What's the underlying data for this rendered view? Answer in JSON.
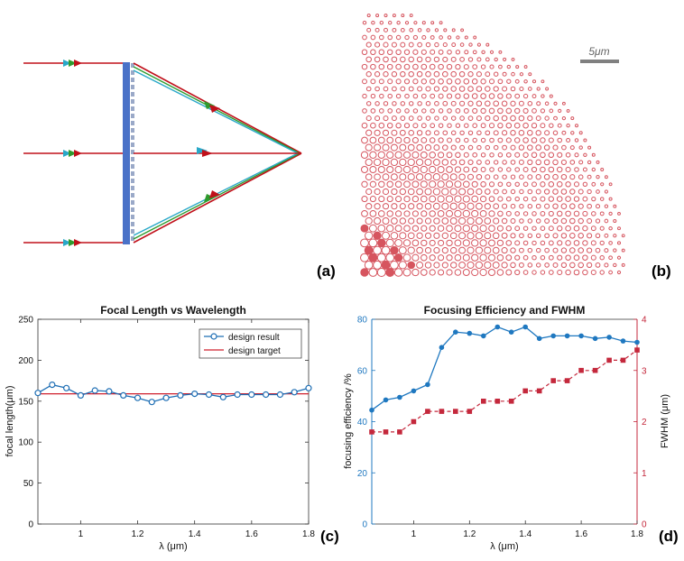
{
  "panel_labels": {
    "a": "(a)",
    "b": "(b)",
    "c": "(c)",
    "d": "(d)"
  },
  "scale_bar_text": "5μm",
  "colors": {
    "ray_red": "#c0101a",
    "ray_green": "#2e9b2e",
    "ray_cyan": "#29a8c8",
    "lens_blue": "#4a72c8",
    "pillar_red": "#d6555f",
    "design_blue": "#1f6fb5",
    "target_red": "#d0202e",
    "eff_blue": "#1f78c0",
    "fwhm_red": "#c4283c",
    "scalebar_gray": "#808080"
  },
  "chart_data": [
    {
      "type": "line",
      "title": "Focal Length vs Wavelength",
      "xlabel": "λ (μm)",
      "ylabel": "focal length(μm)",
      "xlim": [
        0.85,
        1.8
      ],
      "ylim": [
        0,
        250
      ],
      "xticks": [
        1,
        1.2,
        1.4,
        1.6,
        1.8
      ],
      "xtick_labels": [
        "1",
        "1.2",
        "1.4",
        "1.6",
        "1.8"
      ],
      "yticks": [
        0,
        50,
        100,
        150,
        200,
        250
      ],
      "ytick_labels": [
        "0",
        "50",
        "100",
        "150",
        "200",
        "250"
      ],
      "legend": [
        "design result",
        "design target"
      ],
      "legend_position": "top-right",
      "series": [
        {
          "name": "design result",
          "x": [
            0.85,
            0.9,
            0.95,
            1.0,
            1.05,
            1.1,
            1.15,
            1.2,
            1.25,
            1.3,
            1.35,
            1.4,
            1.45,
            1.5,
            1.55,
            1.6,
            1.65,
            1.7,
            1.75,
            1.8
          ],
          "y": [
            160,
            170,
            166,
            157,
            163,
            162,
            157,
            154,
            149,
            154,
            157,
            159,
            158,
            155,
            158,
            158,
            158,
            158,
            161,
            166
          ]
        },
        {
          "name": "design target",
          "x": [
            0.85,
            1.8
          ],
          "y": [
            159,
            159
          ]
        }
      ]
    },
    {
      "type": "line",
      "title": "Focusing Efficiency and FWHM",
      "xlabel": "λ (μm)",
      "ylabel_left": "focusing efficiency /%",
      "ylabel_right": "FWHM (μm)",
      "xlim": [
        0.85,
        1.8
      ],
      "ylim_left": [
        0,
        80
      ],
      "ylim_right": [
        0,
        4
      ],
      "xticks": [
        1,
        1.2,
        1.4,
        1.6,
        1.8
      ],
      "xtick_labels": [
        "1",
        "1.2",
        "1.4",
        "1.6",
        "1.8"
      ],
      "yticks_left": [
        0,
        20,
        40,
        60,
        80
      ],
      "ytick_labels_left": [
        "0",
        "20",
        "40",
        "60",
        "80"
      ],
      "yticks_right": [
        0,
        1,
        2,
        3,
        4
      ],
      "ytick_labels_right": [
        "0",
        "1",
        "2",
        "3",
        "4"
      ],
      "series": [
        {
          "name": "focusing efficiency",
          "axis": "left",
          "x": [
            0.85,
            0.9,
            0.95,
            1.0,
            1.05,
            1.1,
            1.15,
            1.2,
            1.25,
            1.3,
            1.35,
            1.4,
            1.45,
            1.5,
            1.55,
            1.6,
            1.65,
            1.7,
            1.75,
            1.8
          ],
          "y": [
            44.5,
            48.5,
            49.5,
            52,
            54.5,
            69,
            75,
            74.5,
            73.5,
            77,
            75,
            77,
            72.5,
            73.5,
            73.5,
            73.5,
            72.5,
            73,
            71.5,
            71
          ]
        },
        {
          "name": "FWHM",
          "axis": "right",
          "x": [
            0.85,
            0.9,
            0.95,
            1.0,
            1.05,
            1.1,
            1.15,
            1.2,
            1.25,
            1.3,
            1.35,
            1.4,
            1.45,
            1.5,
            1.55,
            1.6,
            1.65,
            1.7,
            1.75,
            1.8
          ],
          "y": [
            1.8,
            1.8,
            1.8,
            2.0,
            2.2,
            2.2,
            2.2,
            2.2,
            2.4,
            2.4,
            2.4,
            2.6,
            2.6,
            2.8,
            2.8,
            3.0,
            3.0,
            3.2,
            3.2,
            3.4
          ]
        }
      ]
    }
  ]
}
